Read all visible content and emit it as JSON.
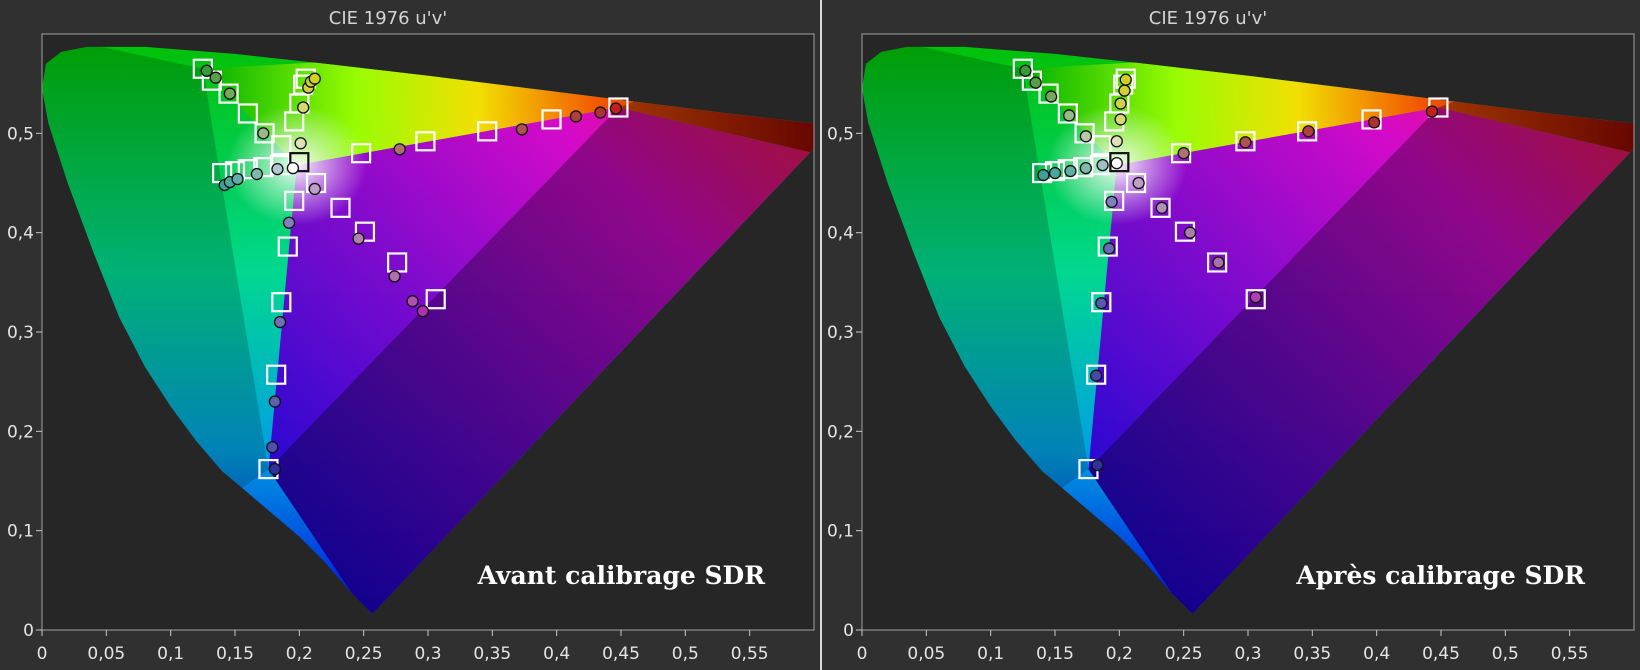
{
  "chart_data": [
    {
      "type": "scatter",
      "title": "CIE 1976 u'v'",
      "caption": "Avant calibrage SDR",
      "xlim": [
        0,
        0.6
      ],
      "ylim": [
        0,
        0.6
      ],
      "grid": false,
      "x_ticks": [
        "0",
        "0,05",
        "0,1",
        "0,15",
        "0,2",
        "0,25",
        "0,3",
        "0,35",
        "0,4",
        "0,45",
        "0,5",
        "0,55"
      ],
      "y_ticks": [
        "0",
        "0,1",
        "0,2",
        "0,3",
        "0,4",
        "0,5"
      ],
      "series": [
        {
          "marker": "square",
          "points": [
            [
              0.125,
              0.565
            ],
            [
              0.132,
              0.553
            ],
            [
              0.145,
              0.54
            ],
            [
              0.16,
              0.52
            ],
            [
              0.173,
              0.5
            ],
            [
              0.186,
              0.488
            ],
            [
              0.196,
              0.512
            ],
            [
              0.2,
              0.53
            ],
            [
              0.203,
              0.549
            ],
            [
              0.205,
              0.555
            ],
            [
              0.14,
              0.46
            ],
            [
              0.15,
              0.462
            ],
            [
              0.16,
              0.464
            ],
            [
              0.172,
              0.466
            ],
            [
              0.185,
              0.468
            ],
            [
              0.2,
              0.471
            ],
            [
              0.213,
              0.45
            ],
            [
              0.232,
              0.425
            ],
            [
              0.251,
              0.401
            ],
            [
              0.276,
              0.37
            ],
            [
              0.306,
              0.333
            ],
            [
              0.196,
              0.432
            ],
            [
              0.191,
              0.386
            ],
            [
              0.186,
              0.33
            ],
            [
              0.182,
              0.257
            ],
            [
              0.176,
              0.162
            ],
            [
              0.248,
              0.48
            ],
            [
              0.298,
              0.492
            ],
            [
              0.346,
              0.502
            ],
            [
              0.396,
              0.514
            ],
            [
              0.448,
              0.526
            ]
          ],
          "colors": [
            "#3a9a3a",
            "#5ab04a",
            "#80c060",
            "#a5d080",
            "#c8e0a8",
            "#e8eed0",
            "#f0f0a0",
            "#e8e860",
            "#e0e040",
            "#dddd20",
            "#3aa8a0",
            "#50b0a8",
            "#70b8b0",
            "#98c8c8",
            "#c8dce0",
            "#303030",
            "#c8b0d8",
            "#b898c8",
            "#a880b8",
            "#9868a8",
            "#b040b0",
            "#a0a0e0",
            "#7878d0",
            "#5858c0",
            "#4040a8",
            "#2828a0",
            "#c89090",
            "#c07070",
            "#c05050",
            "#c03030",
            "#c01818"
          ]
        },
        {
          "marker": "circle",
          "points": [
            [
              0.128,
              0.563
            ],
            [
              0.135,
              0.556
            ],
            [
              0.146,
              0.54
            ],
            [
              0.172,
              0.5
            ],
            [
              0.201,
              0.49
            ],
            [
              0.203,
              0.526
            ],
            [
              0.207,
              0.546
            ],
            [
              0.209,
              0.552
            ],
            [
              0.212,
              0.555
            ],
            [
              0.142,
              0.448
            ],
            [
              0.146,
              0.451
            ],
            [
              0.152,
              0.454
            ],
            [
              0.167,
              0.459
            ],
            [
              0.183,
              0.464
            ],
            [
              0.195,
              0.465
            ],
            [
              0.212,
              0.444
            ],
            [
              0.246,
              0.394
            ],
            [
              0.274,
              0.356
            ],
            [
              0.288,
              0.331
            ],
            [
              0.296,
              0.321
            ],
            [
              0.192,
              0.41
            ],
            [
              0.185,
              0.31
            ],
            [
              0.181,
              0.23
            ],
            [
              0.179,
              0.184
            ],
            [
              0.181,
              0.162
            ],
            [
              0.278,
              0.484
            ],
            [
              0.373,
              0.504
            ],
            [
              0.415,
              0.517
            ],
            [
              0.434,
              0.521
            ],
            [
              0.446,
              0.525
            ]
          ],
          "colors": [
            "#3a9a3a",
            "#58a048",
            "#78a860",
            "#98b888",
            "#e0e0b8",
            "#d8d870",
            "#d0d040",
            "#d0d030",
            "#d0d020",
            "#40a098",
            "#48a8a0",
            "#60b0a8",
            "#80b8b0",
            "#b0c8d0",
            "#ffffff",
            "#c0a0c8",
            "#b080b0",
            "#b070a8",
            "#b050b0",
            "#b030b0",
            "#8080c0",
            "#7070b8",
            "#6060b0",
            "#5050b0",
            "#3030a0",
            "#b07070",
            "#b05050",
            "#b04040",
            "#b03030",
            "#c02020"
          ]
        }
      ]
    },
    {
      "type": "scatter",
      "title": "CIE 1976 u'v'",
      "caption": "Après calibrage SDR",
      "xlim": [
        0,
        0.6
      ],
      "ylim": [
        0,
        0.6
      ],
      "grid": false,
      "x_ticks": [
        "0",
        "0,05",
        "0,1",
        "0,15",
        "0,2",
        "0,25",
        "0,3",
        "0,35",
        "0,4",
        "0,45",
        "0,5",
        "0,55"
      ],
      "y_ticks": [
        "0",
        "0,1",
        "0,2",
        "0,3",
        "0,4",
        "0,5"
      ],
      "series": [
        {
          "marker": "square",
          "points": [
            [
              0.125,
              0.565
            ],
            [
              0.132,
              0.553
            ],
            [
              0.145,
              0.54
            ],
            [
              0.16,
              0.52
            ],
            [
              0.173,
              0.5
            ],
            [
              0.186,
              0.488
            ],
            [
              0.196,
              0.512
            ],
            [
              0.2,
              0.53
            ],
            [
              0.203,
              0.549
            ],
            [
              0.205,
              0.555
            ],
            [
              0.14,
              0.46
            ],
            [
              0.15,
              0.462
            ],
            [
              0.16,
              0.464
            ],
            [
              0.172,
              0.466
            ],
            [
              0.185,
              0.468
            ],
            [
              0.2,
              0.471
            ],
            [
              0.213,
              0.45
            ],
            [
              0.232,
              0.425
            ],
            [
              0.251,
              0.401
            ],
            [
              0.276,
              0.37
            ],
            [
              0.306,
              0.333
            ],
            [
              0.196,
              0.432
            ],
            [
              0.191,
              0.386
            ],
            [
              0.186,
              0.33
            ],
            [
              0.182,
              0.257
            ],
            [
              0.176,
              0.162
            ],
            [
              0.248,
              0.48
            ],
            [
              0.298,
              0.492
            ],
            [
              0.346,
              0.502
            ],
            [
              0.396,
              0.514
            ],
            [
              0.448,
              0.526
            ]
          ],
          "colors": [
            "#3a9a3a",
            "#5ab04a",
            "#80c060",
            "#a5d080",
            "#c8e0a8",
            "#e8eed0",
            "#f0f0a0",
            "#e8e860",
            "#e0e040",
            "#dddd20",
            "#3aa8a0",
            "#50b0a8",
            "#70b8b0",
            "#98c8c8",
            "#c8dce0",
            "#303030",
            "#c8b0d8",
            "#b898c8",
            "#a880b8",
            "#9868a8",
            "#b040b0",
            "#a0a0e0",
            "#7878d0",
            "#5858c0",
            "#4040a8",
            "#2828a0",
            "#c89090",
            "#c07070",
            "#c05050",
            "#c03030",
            "#c01818"
          ]
        },
        {
          "marker": "circle",
          "points": [
            [
              0.127,
              0.563
            ],
            [
              0.135,
              0.551
            ],
            [
              0.147,
              0.537
            ],
            [
              0.161,
              0.518
            ],
            [
              0.174,
              0.497
            ],
            [
              0.198,
              0.492
            ],
            [
              0.201,
              0.514
            ],
            [
              0.201,
              0.53
            ],
            [
              0.204,
              0.543
            ],
            [
              0.205,
              0.554
            ],
            [
              0.141,
              0.458
            ],
            [
              0.15,
              0.46
            ],
            [
              0.162,
              0.462
            ],
            [
              0.174,
              0.465
            ],
            [
              0.187,
              0.468
            ],
            [
              0.198,
              0.47
            ],
            [
              0.215,
              0.45
            ],
            [
              0.233,
              0.425
            ],
            [
              0.255,
              0.4
            ],
            [
              0.277,
              0.37
            ],
            [
              0.306,
              0.335
            ],
            [
              0.194,
              0.431
            ],
            [
              0.192,
              0.384
            ],
            [
              0.186,
              0.329
            ],
            [
              0.182,
              0.256
            ],
            [
              0.183,
              0.166
            ],
            [
              0.25,
              0.48
            ],
            [
              0.298,
              0.491
            ],
            [
              0.347,
              0.502
            ],
            [
              0.398,
              0.511
            ],
            [
              0.443,
              0.522
            ]
          ],
          "colors": [
            "#3a9a3a",
            "#58a048",
            "#78a860",
            "#98b888",
            "#b8c8a8",
            "#e0e0b8",
            "#d8d870",
            "#d0d050",
            "#d0d030",
            "#d0d020",
            "#40a098",
            "#48a8a0",
            "#60b0a8",
            "#80b8b0",
            "#a0c0c8",
            "#ffffff",
            "#c0a0c8",
            "#b090b8",
            "#a880b0",
            "#a870a8",
            "#b040b0",
            "#8080c0",
            "#6868b8",
            "#5858b0",
            "#4848a8",
            "#3030a0",
            "#b07070",
            "#b05050",
            "#b04040",
            "#b03030",
            "#c02020"
          ]
        }
      ]
    }
  ]
}
